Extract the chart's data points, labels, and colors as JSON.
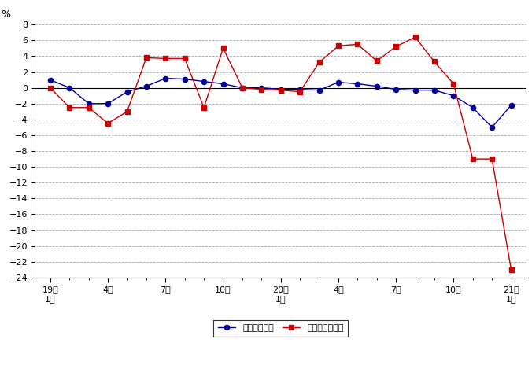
{
  "ylabel": "%",
  "ylim": [
    -24,
    8
  ],
  "x_tick_positions": [
    0,
    3,
    6,
    9,
    12,
    15,
    18,
    21,
    24
  ],
  "x_tick_labels": [
    "19年\n1月",
    "4月",
    "7月",
    "10月",
    "20年\n1月",
    "4月",
    "7月",
    "10月",
    "21年\n1月"
  ],
  "blue_label": "総実労働時間",
  "red_label": "所定外労働時間",
  "blue_color": "#000099",
  "red_color": "#cc0000",
  "background_color": "#ffffff",
  "blue_values": [
    1.0,
    0.0,
    -2.0,
    -2.0,
    -0.5,
    0.2,
    1.2,
    1.1,
    0.8,
    0.5,
    0.0,
    0.0,
    -0.2,
    -0.2,
    -0.3,
    0.7,
    0.5,
    0.2,
    -0.2,
    -0.3,
    -0.3,
    -1.0,
    -2.5,
    -5.0,
    -2.2
  ],
  "red_values": [
    0.0,
    -2.5,
    -2.5,
    -4.5,
    -3.0,
    3.8,
    3.7,
    3.7,
    -2.5,
    5.0,
    0.0,
    -0.2,
    -0.3,
    -0.5,
    3.2,
    5.3,
    5.5,
    3.4,
    5.2,
    6.4,
    3.3,
    0.5,
    -9.0,
    -9.0,
    -23.0
  ]
}
